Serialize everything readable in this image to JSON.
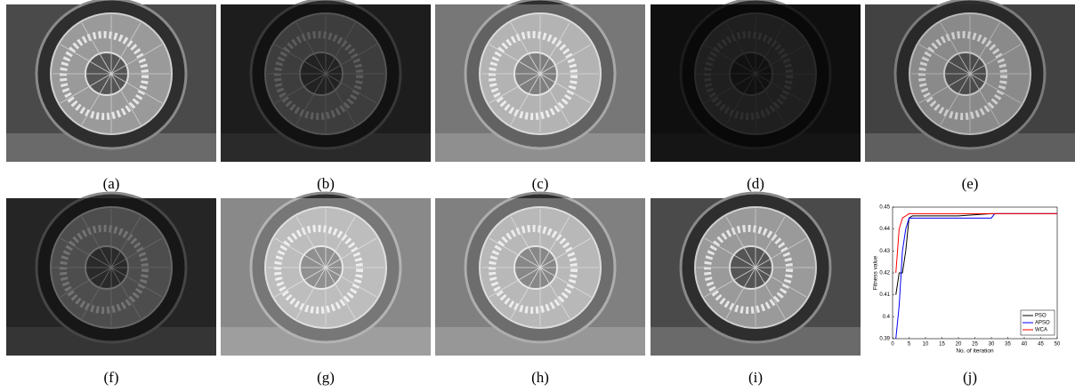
{
  "captions": [
    "(a)",
    "(b)",
    "(c)",
    "(d)",
    "(e)",
    "(f)",
    "(g)",
    "(h)",
    "(i)",
    "(j)"
  ],
  "chart_data": {
    "type": "line",
    "x_label": "No. of iteration",
    "y_label": "Fitness value",
    "x": [
      1,
      2,
      3,
      4,
      5,
      6,
      10,
      20,
      30,
      31,
      40,
      50
    ],
    "series": [
      {
        "name": "PSO",
        "color": "#000000",
        "values": [
          0.41,
          0.42,
          0.42,
          0.43,
          0.445,
          0.446,
          0.446,
          0.446,
          0.447,
          0.447,
          0.447,
          0.447
        ]
      },
      {
        "name": "APSO",
        "color": "#0000ff",
        "values": [
          0.39,
          0.405,
          0.43,
          0.44,
          0.445,
          0.445,
          0.445,
          0.445,
          0.445,
          0.447,
          0.447,
          0.447
        ]
      },
      {
        "name": "WCA",
        "color": "#ff0000",
        "values": [
          0.42,
          0.44,
          0.445,
          0.446,
          0.447,
          0.447,
          0.447,
          0.447,
          0.447,
          0.447,
          0.447,
          0.447
        ]
      }
    ],
    "xlim": [
      0,
      50
    ],
    "xticks": [
      0,
      5,
      10,
      15,
      20,
      25,
      30,
      35,
      40,
      45,
      50
    ],
    "ylim": [
      0.39,
      0.45
    ],
    "yticks": [
      0.39,
      0.4,
      0.41,
      0.42,
      0.43,
      0.44,
      0.45
    ],
    "grid": false,
    "legend": "lower right"
  }
}
